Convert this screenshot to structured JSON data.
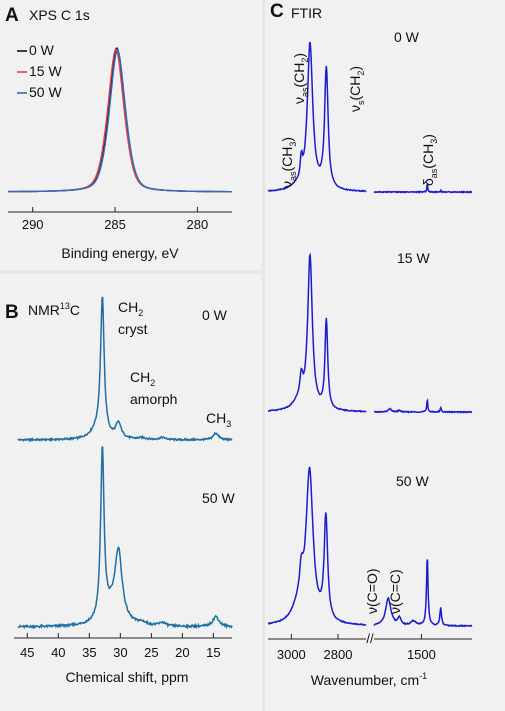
{
  "panels": {
    "A": {
      "letter": "A",
      "title": "XPS C 1s"
    },
    "B": {
      "letter": "B",
      "title": "NMR",
      "title_sup": "13",
      "title_tail": "C"
    },
    "C": {
      "letter": "C",
      "title": "FTIR"
    }
  },
  "colors": {
    "w0": "#111111",
    "w15": "#e8404a",
    "w50": "#2a6fbf",
    "nmr": "#1f6fa3",
    "ftir": "#1c1ccc"
  },
  "chart_data": [
    {
      "id": "xps",
      "type": "line",
      "title": "XPS C 1s",
      "xlabel": "Binding energy, eV",
      "ylabel": "",
      "xlim": [
        291.5,
        277.9
      ],
      "xticks": [
        "290",
        "285",
        "280"
      ],
      "grid": false,
      "legend_position": "top-left",
      "series": [
        {
          "name": "0 W",
          "color": "#111111",
          "peak": 284.9,
          "sigma": 0.52,
          "gamma": 0.48,
          "height": 1.0
        },
        {
          "name": "15 W",
          "color": "#e8404a",
          "peak": 284.95,
          "sigma": 0.54,
          "gamma": 0.5,
          "height": 0.99
        },
        {
          "name": "50 W",
          "color": "#2a6fbf",
          "peak": 284.85,
          "sigma": 0.53,
          "gamma": 0.49,
          "height": 0.985
        }
      ]
    },
    {
      "id": "nmr",
      "type": "line",
      "title": "NMR 13C",
      "xlabel": "Chemical shift, ppm",
      "ylabel": "",
      "xlim": [
        46.5,
        12
      ],
      "xticks": [
        "45",
        "40",
        "35",
        "30",
        "25",
        "20",
        "15"
      ],
      "grid": false,
      "annotations": [
        {
          "text": "CH",
          "sub": "2",
          "line2": "cryst"
        },
        {
          "text": "CH",
          "sub": "2",
          "line2": "amorph"
        },
        {
          "text": "CH",
          "sub": "3",
          "line2": ""
        }
      ],
      "series": [
        {
          "name": "0 W",
          "peaks": [
            [
              32.9,
              1.0,
              0.35
            ],
            [
              30.3,
              0.11,
              0.55
            ],
            [
              33.8,
              0.06,
              1.2
            ],
            [
              14.6,
              0.05,
              0.5
            ],
            [
              23.2,
              0.015,
              0.6
            ],
            [
              26.5,
              0.012,
              0.8
            ]
          ]
        },
        {
          "name": "50 W",
          "peaks": [
            [
              32.9,
              1.0,
              0.33
            ],
            [
              30.3,
              0.4,
              0.7
            ],
            [
              31.5,
              0.08,
              1.6
            ],
            [
              14.6,
              0.06,
              0.6
            ],
            [
              23.2,
              0.02,
              0.6
            ],
            [
              26.5,
              0.015,
              0.8
            ]
          ]
        }
      ]
    },
    {
      "id": "ftir",
      "type": "line",
      "title": "FTIR",
      "xlabel": "Wavenumber, cm",
      "xlabel_sup": "-1",
      "ylabel": "",
      "xticks": [
        "3000",
        "2800",
        "1500"
      ],
      "axis_break": "//",
      "grid": false,
      "annotations": [
        {
          "text": "ν",
          "sub": "as",
          "tail": "(CH",
          "sub2": "3",
          "end": ")"
        },
        {
          "text": "ν",
          "sub": "as",
          "tail": "(CH",
          "sub2": "2",
          "end": ")"
        },
        {
          "text": "ν",
          "sub": "s",
          "tail": "(CH",
          "sub2": "2",
          "end": ")"
        },
        {
          "text": "δ",
          "sub": "as",
          "tail": "(CH",
          "sub2": "3",
          "end": ")"
        },
        {
          "text": "ν(C=O)"
        },
        {
          "text": "ν(C=C)"
        }
      ],
      "series": [
        {
          "name": "0 W",
          "high_region": [
            [
              2957,
              0.14,
              6
            ],
            [
              2920,
              1.0,
              14
            ],
            [
              2850,
              0.82,
              9
            ],
            [
              2985,
              0.02,
              25
            ]
          ],
          "low_region": [
            [
              1463,
              0.06,
              3
            ],
            [
              1378,
              0.01,
              3
            ],
            [
              1700,
              0.0,
              10
            ],
            [
              1640,
              0.0,
              10
            ]
          ]
        },
        {
          "name": "15 W",
          "high_region": [
            [
              2957,
              0.14,
              8
            ],
            [
              2920,
              1.0,
              12
            ],
            [
              2850,
              0.58,
              7
            ],
            [
              2970,
              0.05,
              30
            ]
          ],
          "low_region": [
            [
              1463,
              0.08,
              4
            ],
            [
              1378,
              0.03,
              4
            ],
            [
              1700,
              0.02,
              12
            ],
            [
              1640,
              0.01,
              10
            ]
          ]
        },
        {
          "name": "50 W",
          "high_region": [
            [
              2957,
              0.2,
              10
            ],
            [
              2922,
              1.0,
              18
            ],
            [
              2852,
              0.68,
              9
            ],
            [
              2975,
              0.08,
              30
            ]
          ],
          "low_region": [
            [
              1463,
              0.45,
              6
            ],
            [
              1378,
              0.12,
              6
            ],
            [
              1710,
              0.18,
              20
            ],
            [
              1640,
              0.05,
              12
            ],
            [
              1550,
              0.03,
              20
            ]
          ]
        }
      ],
      "series_labels": [
        "0 W",
        "15 W",
        "50 W"
      ]
    }
  ]
}
